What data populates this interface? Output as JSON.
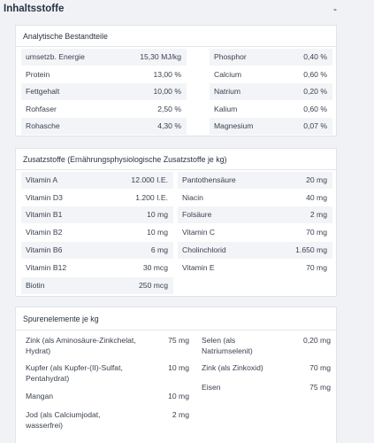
{
  "header": {
    "title": "Inhaltsstoffe",
    "collapse_symbol": "-"
  },
  "analytic": {
    "title": "Analytische Bestandteile",
    "rows": [
      {
        "l1": "umsetzb. Energie",
        "v1": "15,30 MJ/kg",
        "l2": "Phosphor",
        "v2": "0,40 %"
      },
      {
        "l1": "Protein",
        "v1": "13,00 %",
        "l2": "Calcium",
        "v2": "0,60 %"
      },
      {
        "l1": "Fettgehalt",
        "v1": "10,00 %",
        "l2": "Natrium",
        "v2": "0,20 %"
      },
      {
        "l1": "Rohfaser",
        "v1": "2,50 %",
        "l2": "Kalium",
        "v2": "0,60 %"
      },
      {
        "l1": "Rohasche",
        "v1": "4,30 %",
        "l2": "Magnesium",
        "v2": "0,07 %"
      }
    ]
  },
  "additives": {
    "title": "Zusatzstoffe (Ernährungsphysiologische Zusatzstoffe je kg)",
    "rows": [
      {
        "l1": "Vitamin A",
        "v1": "12.000 I.E.",
        "l2": "Pantothensäure",
        "v2": "20 mg"
      },
      {
        "l1": "Vitamin D3",
        "v1": "1.200 I.E.",
        "l2": "Niacin",
        "v2": "40 mg"
      },
      {
        "l1": "Vitamin B1",
        "v1": "10 mg",
        "l2": "Folsäure",
        "v2": "2 mg"
      },
      {
        "l1": "Vitamin B2",
        "v1": "10 mg",
        "l2": "Vitamin C",
        "v2": "70 mg"
      },
      {
        "l1": "Vitamin B6",
        "v1": "6 mg",
        "l2": "Cholinchlorid",
        "v2": "1.650 mg"
      },
      {
        "l1": "Vitamin B12",
        "v1": "30 mcg",
        "l2": "Vitamin E",
        "v2": "70 mg"
      },
      {
        "l1": "Biotin",
        "v1": "250 mcg"
      }
    ]
  },
  "trace": {
    "title": "Spurenelemente je kg",
    "left": [
      {
        "label_1": "Zink (als Aminosäure-Zinkchelat,",
        "label_2": "Hydrat)",
        "value": "75 mg"
      },
      {
        "label_1": "Kupfer (als Kupfer-(II)-Sulfat,",
        "label_2": "Pentahydrat)",
        "value": "10 mg"
      },
      {
        "label_1": "Mangan",
        "label_2": "",
        "value": "10 mg"
      },
      {
        "label_1": "Jod (als Calciumjodat,",
        "label_2": "wasserfrei)",
        "value": "2 mg"
      }
    ],
    "right": [
      {
        "label_1": "Selen (als",
        "label_2": "Natriumselenit)",
        "value": "0,20 mg"
      },
      {
        "label_1": "Zink (als Zinkoxid)",
        "label_2": "",
        "value": "70 mg"
      },
      {
        "label_1": "Eisen",
        "label_2": "",
        "value": "75 mg"
      }
    ]
  }
}
